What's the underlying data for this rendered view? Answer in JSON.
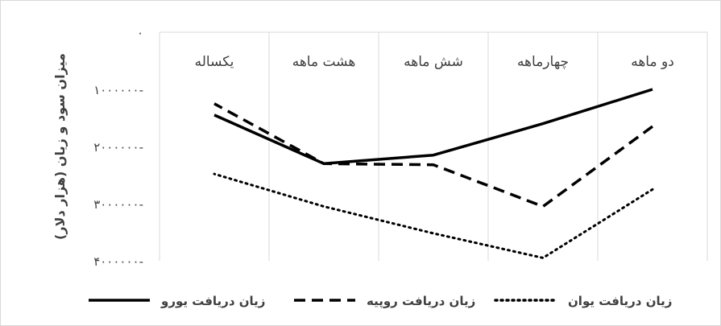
{
  "chart_data": {
    "type": "line",
    "title": "",
    "xlabel": "",
    "ylabel": "میزان سود و زیان (هزار دلار)",
    "categories": [
      "دو ماهه",
      "چهارماهه",
      "شش ماهه",
      "هشت ماهه",
      "یکساله"
    ],
    "y_tick_labels": [
      "۰",
      "۱۰۰۰۰۰۰-",
      "۲۰۰۰۰۰۰-",
      "۳۰۰۰۰۰۰-",
      "۴۰۰۰۰۰۰-"
    ],
    "y_ticks": [
      0,
      -1000000,
      -2000000,
      -3000000,
      -4000000
    ],
    "ylim": [
      -4000000,
      0
    ],
    "grid": "vertical",
    "legend_position": "bottom",
    "series": [
      {
        "name": "زیان دریافت یورو",
        "style": "solid",
        "color": "#000000",
        "values": [
          -1000000,
          -1600000,
          -2150000,
          -2300000,
          -1450000
        ]
      },
      {
        "name": "زیان دریافت روپیه",
        "style": "dashed",
        "color": "#000000",
        "values": [
          -1650000,
          -3050000,
          -2320000,
          -2300000,
          -1250000
        ]
      },
      {
        "name": "زیان دریافت یوان",
        "style": "dotted",
        "color": "#000000",
        "values": [
          -2750000,
          -3950000,
          -3520000,
          -3050000,
          -2480000
        ]
      }
    ]
  }
}
